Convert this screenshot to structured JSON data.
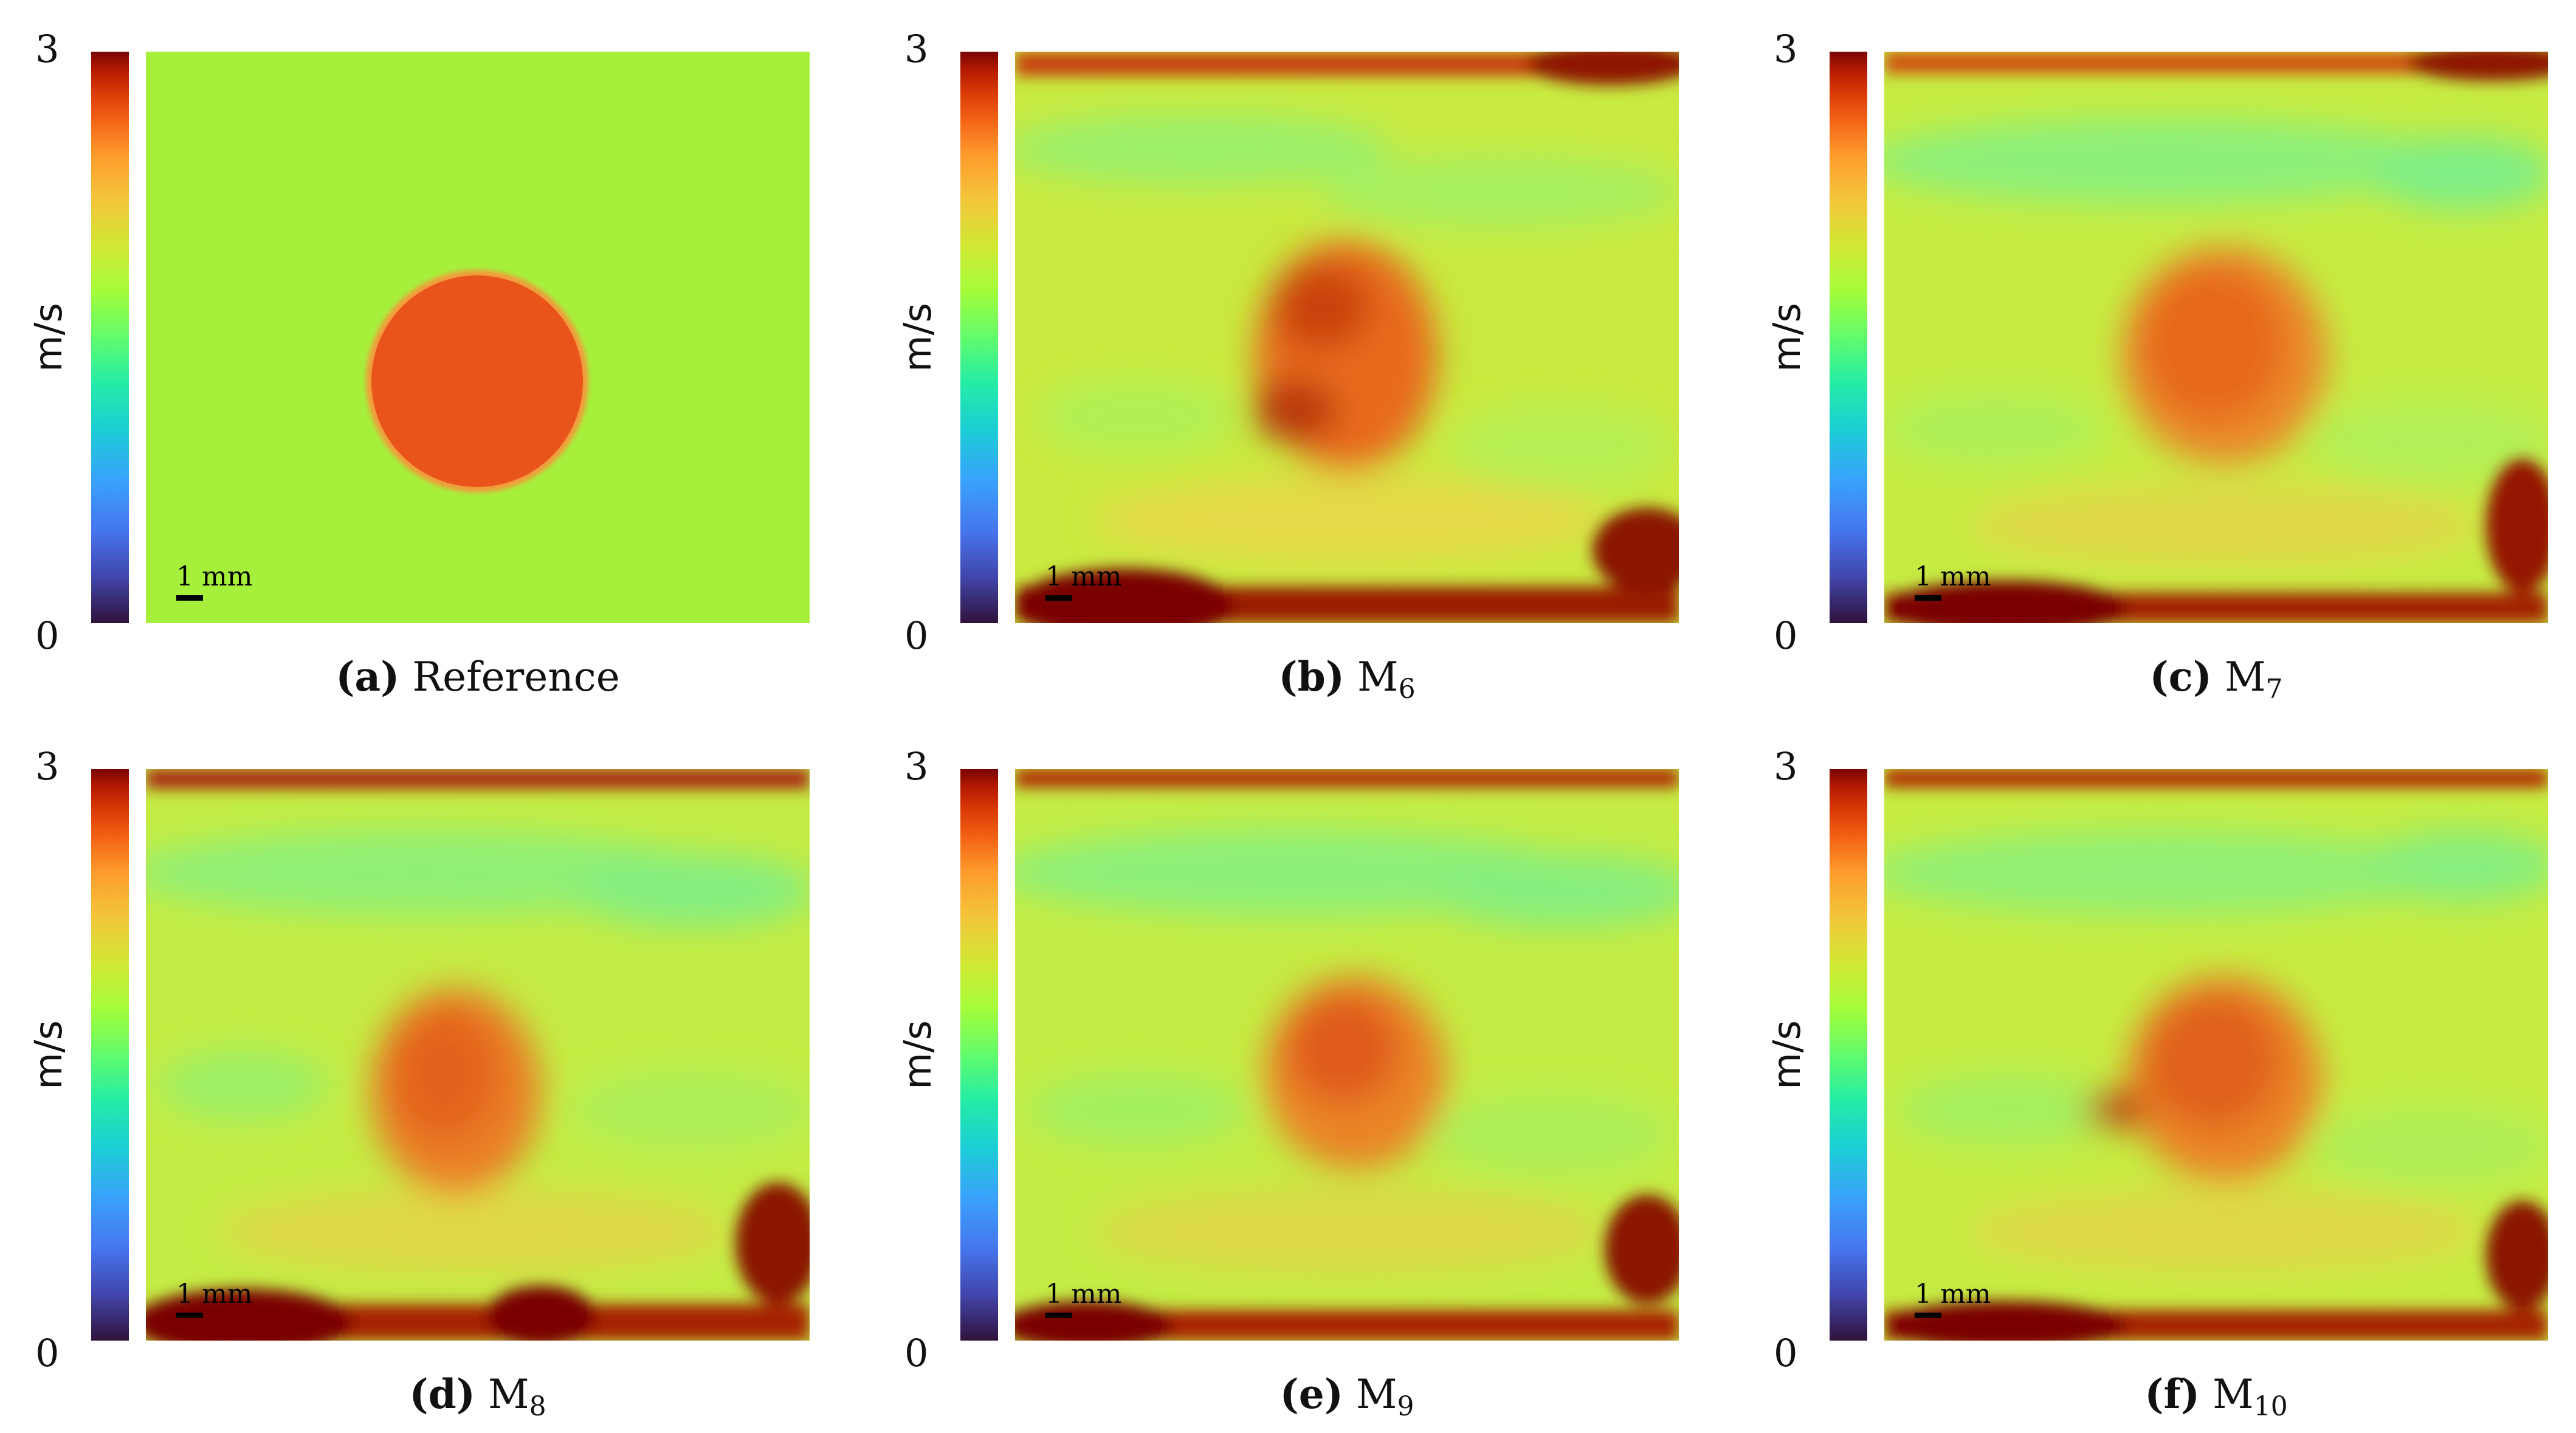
{
  "colormap": {
    "max_label": "3",
    "min_label": "0",
    "unit": "m/s",
    "name": "turbo",
    "colors": {
      "background_green": "#a6f03c",
      "inclusion_orange": "#e8541a",
      "dark_red": "#7a0403",
      "amber": "#f8c540"
    }
  },
  "panels": [
    {
      "letter": "(a)",
      "main": "Reference",
      "sub": "",
      "scale_label": "1 mm"
    },
    {
      "letter": "(b)",
      "main": "M",
      "sub": "6",
      "scale_label": "1 mm"
    },
    {
      "letter": "(c)",
      "main": "M",
      "sub": "7",
      "scale_label": "1 mm"
    },
    {
      "letter": "(d)",
      "main": "M",
      "sub": "8",
      "scale_label": "1 mm"
    },
    {
      "letter": "(e)",
      "main": "M",
      "sub": "9",
      "scale_label": "1 mm"
    },
    {
      "letter": "(f)",
      "main": "M",
      "sub": "10",
      "scale_label": "1 mm"
    }
  ]
}
